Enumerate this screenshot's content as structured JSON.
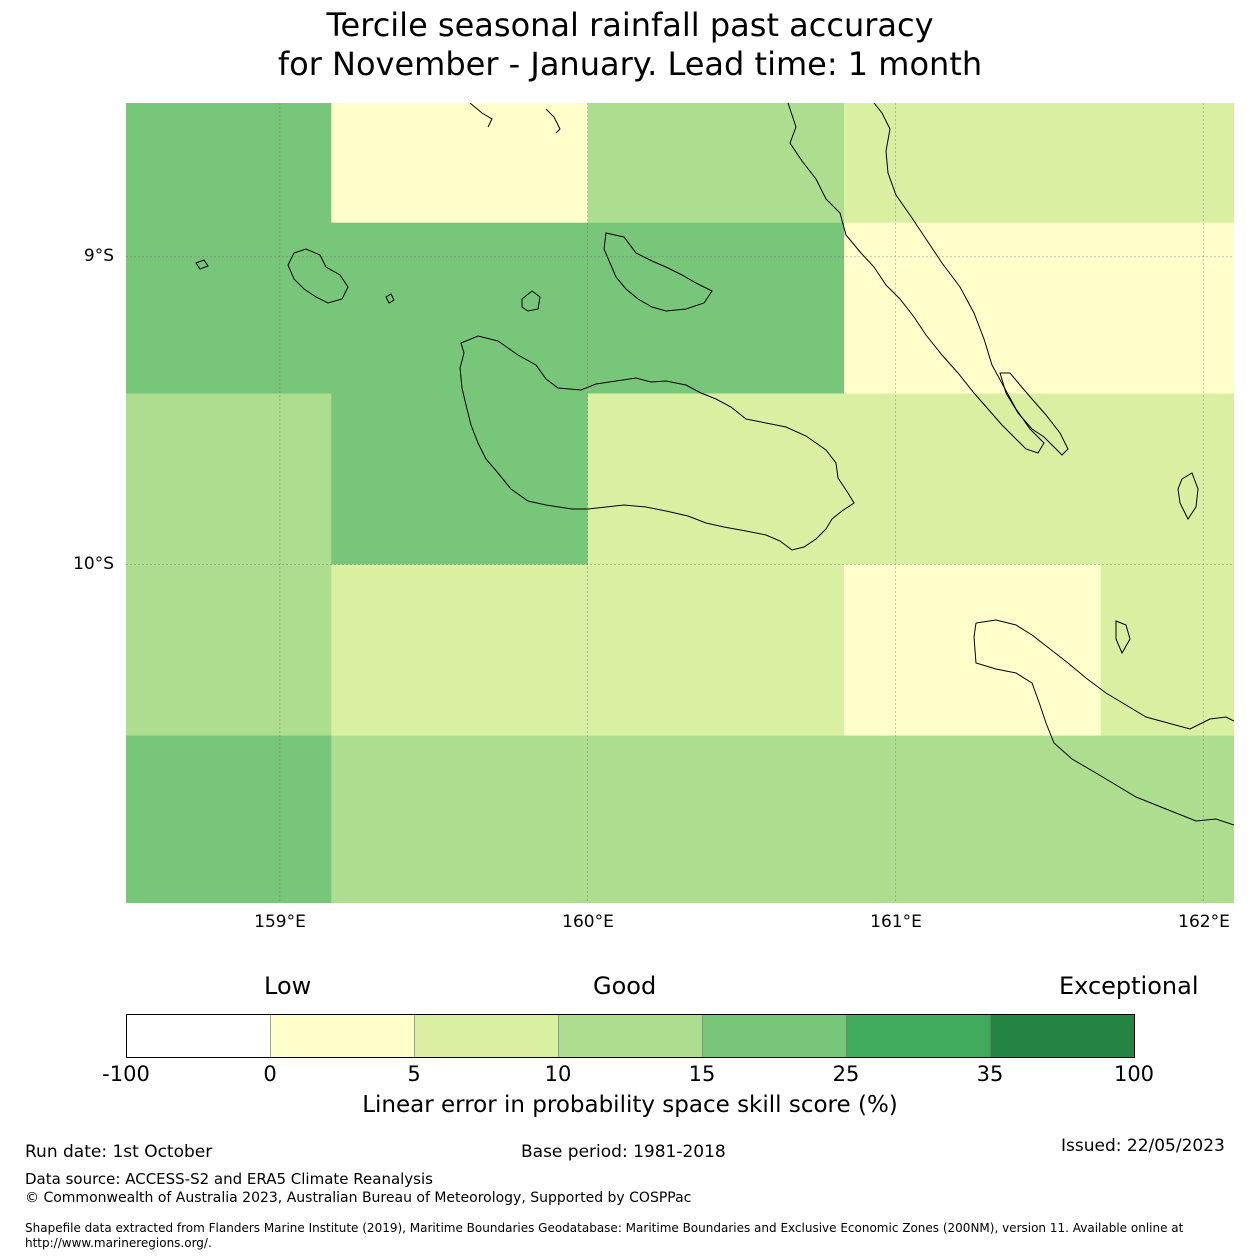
{
  "title": {
    "line1": "Tercile seasonal rainfall past accuracy",
    "line2": "for November - January. Lead time: 1 month"
  },
  "map": {
    "lat_labels": [
      "9°S",
      "10°S"
    ],
    "lon_labels": [
      "159°E",
      "160°E",
      "161°E",
      "162°E"
    ],
    "lon_range": [
      158.5,
      162.1
    ],
    "lat_range": [
      -8.5,
      -11.1
    ],
    "grid_lons": [
      159.0,
      160.0,
      161.0,
      162.0
    ],
    "grid_lats": [
      -9.0,
      -10.0
    ],
    "cells": [
      {
        "lon0": 158.5,
        "lon1": 159.167,
        "lat0": -8.5,
        "lat1": -8.889,
        "score_bin": "15-25"
      },
      {
        "lon0": 159.167,
        "lon1": 160.0,
        "lat0": -8.5,
        "lat1": -8.889,
        "score_bin": "0-5"
      },
      {
        "lon0": 160.0,
        "lon1": 160.833,
        "lat0": -8.5,
        "lat1": -8.889,
        "score_bin": "10-15"
      },
      {
        "lon0": 160.833,
        "lon1": 162.1,
        "lat0": -8.5,
        "lat1": -8.889,
        "score_bin": "5-10"
      },
      {
        "lon0": 158.5,
        "lon1": 159.167,
        "lat0": -8.889,
        "lat1": -9.444,
        "score_bin": "15-25"
      },
      {
        "lon0": 159.167,
        "lon1": 160.833,
        "lat0": -8.889,
        "lat1": -9.444,
        "score_bin": "15-25"
      },
      {
        "lon0": 160.833,
        "lon1": 162.1,
        "lat0": -8.889,
        "lat1": -9.444,
        "score_bin": "0-5"
      },
      {
        "lon0": 158.5,
        "lon1": 159.167,
        "lat0": -9.444,
        "lat1": -10.0,
        "score_bin": "10-15"
      },
      {
        "lon0": 159.167,
        "lon1": 160.0,
        "lat0": -9.444,
        "lat1": -10.0,
        "score_bin": "15-25"
      },
      {
        "lon0": 160.0,
        "lon1": 162.1,
        "lat0": -9.444,
        "lat1": -10.0,
        "score_bin": "5-10"
      },
      {
        "lon0": 158.5,
        "lon1": 159.167,
        "lat0": -10.0,
        "lat1": -10.556,
        "score_bin": "10-15"
      },
      {
        "lon0": 159.167,
        "lon1": 160.833,
        "lat0": -10.0,
        "lat1": -10.556,
        "score_bin": "5-10"
      },
      {
        "lon0": 160.833,
        "lon1": 161.667,
        "lat0": -10.0,
        "lat1": -10.556,
        "score_bin": "0-5"
      },
      {
        "lon0": 161.667,
        "lon1": 162.1,
        "lat0": -10.0,
        "lat1": -10.556,
        "score_bin": "5-10"
      },
      {
        "lon0": 158.5,
        "lon1": 159.167,
        "lat0": -10.556,
        "lat1": -11.1,
        "score_bin": "15-25"
      },
      {
        "lon0": 159.167,
        "lon1": 162.1,
        "lat0": -10.556,
        "lat1": -11.1,
        "score_bin": "10-15"
      }
    ]
  },
  "colorbar": {
    "headings": {
      "low": "Low",
      "good": "Good",
      "exceptional": "Exceptional"
    },
    "ticks": [
      "-100",
      "0",
      "5",
      "10",
      "15",
      "25",
      "35",
      "100"
    ],
    "bins": [
      {
        "id": "-100-0",
        "color": "#ffffff"
      },
      {
        "id": "0-5",
        "color": "#ffffcc"
      },
      {
        "id": "5-10",
        "color": "#d9f0a3"
      },
      {
        "id": "10-15",
        "color": "#addd8e"
      },
      {
        "id": "15-25",
        "color": "#78c679"
      },
      {
        "id": "25-35",
        "color": "#41ab5d"
      },
      {
        "id": "35-100",
        "color": "#238443"
      }
    ],
    "label": "Linear error in probability space skill score (%)"
  },
  "footer": {
    "run_date": "Run date: 1st October",
    "base_period": "Base period: 1981-2018",
    "issued": "Issued: 22/05/2023",
    "data_source": "Data source: ACCESS-S2 and ERA5 Climate Reanalysis",
    "copyright": "© Commonwealth of Australia 2023, Australian Bureau of Meteorology, Supported by COSPPac",
    "shapefile": "Shapefile data extracted from Flanders Marine Institute (2019), Maritime Boundaries Geodatabase: Maritime Boundaries and Exclusive Economic Zones (200NM), version 11. Available online at http://www.marineregions.org/."
  }
}
